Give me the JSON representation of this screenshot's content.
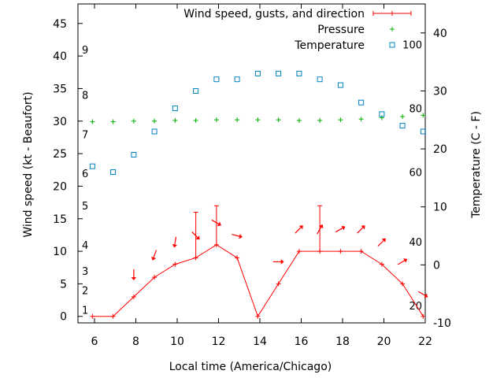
{
  "chart_data": {
    "type": "line",
    "xlabel": "Local time (America/Chicago)",
    "ylabel_left": "Wind speed (kt - Beaufort)",
    "ylabel_right": "Temperature (C - F)",
    "legend_position": "top-right",
    "grid": false,
    "x_range": [
      5.2,
      22
    ],
    "x_ticks": [
      6,
      8,
      10,
      12,
      14,
      16,
      18,
      20,
      22
    ],
    "y_left_range": [
      -1,
      48
    ],
    "y_left_ticks": [
      0,
      5,
      10,
      15,
      20,
      25,
      30,
      35,
      40,
      45
    ],
    "y_right_range": [
      -10,
      45
    ],
    "y_right_ticks": [
      -10,
      0,
      10,
      20,
      30,
      40
    ],
    "beaufort_scale": [
      {
        "label": "1",
        "kt": 1
      },
      {
        "label": "2",
        "kt": 4
      },
      {
        "label": "3",
        "kt": 7
      },
      {
        "label": "4",
        "kt": 11
      },
      {
        "label": "5",
        "kt": 17
      },
      {
        "label": "6",
        "kt": 22
      },
      {
        "label": "7",
        "kt": 28
      },
      {
        "label": "8",
        "kt": 34
      },
      {
        "label": "9",
        "kt": 41
      }
    ],
    "fahrenheit_scale": [
      {
        "label": "20",
        "c": -7
      },
      {
        "label": "40",
        "c": 4
      },
      {
        "label": "60",
        "c": 16
      },
      {
        "label": "80",
        "c": 27
      },
      {
        "label": "100",
        "c": 38
      }
    ],
    "series": [
      {
        "name": "Wind speed, gusts, and direction",
        "color": "#ff0000",
        "x": [
          5.9,
          6.9,
          7.9,
          8.9,
          9.9,
          10.9,
          11.9,
          12.9,
          13.9,
          14.9,
          15.9,
          16.9,
          17.9,
          18.9,
          19.9,
          20.9,
          21.9
        ],
        "values": [
          0,
          0,
          3,
          6,
          8,
          9,
          11,
          9,
          0,
          5,
          10,
          10,
          10,
          10,
          8,
          5,
          0
        ],
        "gusts": [
          null,
          null,
          null,
          null,
          null,
          16,
          17,
          null,
          null,
          null,
          null,
          17,
          null,
          null,
          null,
          null,
          null
        ],
        "direction_deg": [
          null,
          null,
          180,
          200,
          190,
          135,
          120,
          105,
          null,
          90,
          45,
          30,
          60,
          45,
          45,
          60,
          120
        ]
      },
      {
        "name": "Pressure",
        "color": "#00b000",
        "x": [
          5.9,
          6.9,
          7.9,
          8.9,
          9.9,
          10.9,
          11.9,
          12.9,
          13.9,
          14.9,
          15.9,
          16.9,
          17.9,
          18.9,
          19.9,
          20.9,
          21.9
        ],
        "values": [
          29.9,
          29.9,
          30.0,
          30.0,
          30.1,
          30.1,
          30.2,
          30.2,
          30.2,
          30.2,
          30.1,
          30.1,
          30.2,
          30.3,
          30.5,
          30.7,
          30.9
        ]
      },
      {
        "name": "Temperature",
        "color": "#0080c0",
        "x": [
          5.9,
          6.9,
          7.9,
          8.9,
          9.9,
          10.9,
          11.9,
          12.9,
          13.9,
          14.9,
          15.9,
          16.9,
          17.9,
          18.9,
          19.9,
          20.9,
          21.9
        ],
        "values": [
          17,
          16,
          19,
          23,
          27,
          30,
          32,
          32,
          33,
          33,
          33,
          32,
          31,
          28,
          26,
          24,
          23
        ]
      }
    ]
  }
}
